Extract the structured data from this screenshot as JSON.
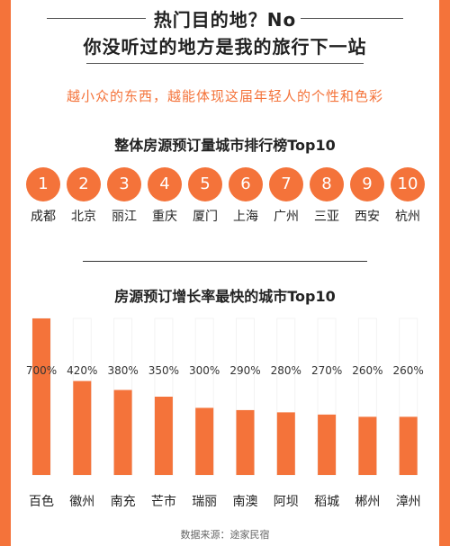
{
  "header": {
    "title_line1": "热门目的地？No",
    "title_line2": "你没听过的地方是我的旅行下一站",
    "subtitle": "越小众的东西，越能体现这届年轻人的个性和色彩"
  },
  "colors": {
    "accent": "#f4733a",
    "background": "#ffffff",
    "bar_track": "#ffffff",
    "text": "#222222"
  },
  "chart_data": [
    {
      "type": "table",
      "title": "整体房源预订量城市排行榜Top10",
      "ranks": [
        "1",
        "2",
        "3",
        "4",
        "5",
        "6",
        "7",
        "8",
        "9",
        "10"
      ],
      "cities": [
        "成都",
        "北京",
        "丽江",
        "重庆",
        "厦门",
        "上海",
        "广州",
        "三亚",
        "西安",
        "杭州"
      ]
    },
    {
      "type": "bar",
      "title": "房源预订增长率最快的城市Top10",
      "categories": [
        "百色",
        "徽州",
        "南充",
        "芒市",
        "瑞丽",
        "南澳",
        "阿坝",
        "稻城",
        "郴州",
        "漳州"
      ],
      "values": [
        700,
        420,
        380,
        350,
        300,
        290,
        280,
        270,
        260,
        260
      ],
      "value_labels": [
        "700%",
        "420%",
        "380%",
        "350%",
        "300%",
        "290%",
        "280%",
        "270%",
        "260%",
        "260%"
      ],
      "unit": "%",
      "ylim": [
        0,
        700
      ]
    }
  ],
  "footer": {
    "source": "数据来源：途家民宿"
  }
}
